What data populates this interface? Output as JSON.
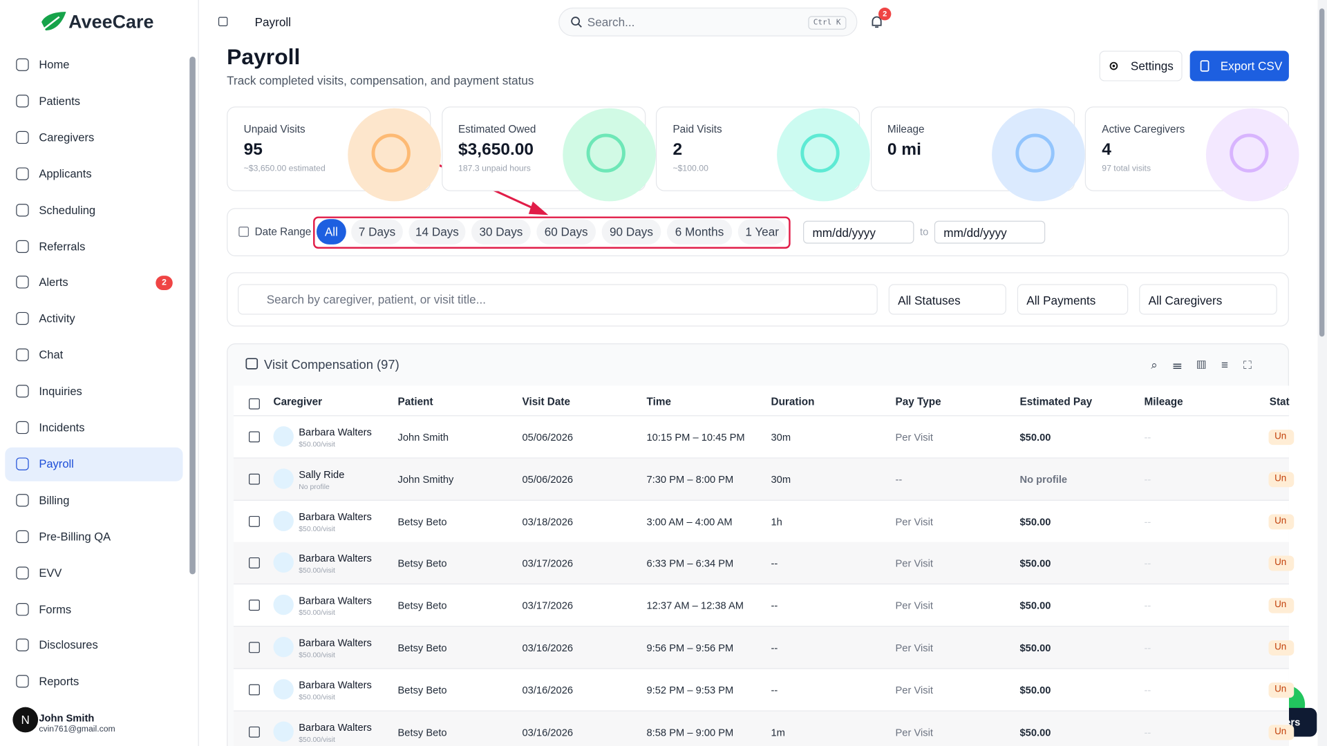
{
  "header": {
    "brand": "AveeCare",
    "breadcrumb": "Payroll",
    "search_placeholder": "Search...",
    "shortcut": "Ctrl K",
    "notification_count": "2"
  },
  "sidebar": {
    "items": [
      "Home",
      "Patients",
      "Caregivers",
      "Applicants",
      "Scheduling",
      "Referrals",
      "Alerts",
      "Activity",
      "Chat",
      "Inquiries",
      "Incidents",
      "Payroll",
      "Billing",
      "Pre-Billing QA",
      "EVV",
      "Forms",
      "Disclosures",
      "Reports"
    ],
    "alerts_badge": "2",
    "user": {
      "initial": "N",
      "name": "John Smith",
      "email": "cvin761@gmail.com"
    }
  },
  "page": {
    "title": "Payroll",
    "subtitle": "Track completed visits, compensation, and payment status",
    "settings_button": "Settings",
    "export_button": "Export CSV"
  },
  "stats": [
    {
      "label": "Unpaid Visits",
      "value": "95",
      "note": "~$3,650.00 estimated"
    },
    {
      "label": "Estimated Owed",
      "value": "$3,650.00",
      "note": "187.3 unpaid hours"
    },
    {
      "label": "Paid Visits",
      "value": "2",
      "note": "~$100.00"
    },
    {
      "label": "Mileage",
      "value": "0 mi",
      "note": ""
    },
    {
      "label": "Active Caregivers",
      "value": "4",
      "note": "97 total visits"
    }
  ],
  "date_range": {
    "label": "Date Range",
    "options": [
      "All",
      "7 Days",
      "14 Days",
      "30 Days",
      "60 Days",
      "90 Days",
      "6 Months",
      "1 Year"
    ],
    "from_placeholder": "mm/dd/yyyy",
    "to_label": "to",
    "to_placeholder": "mm/dd/yyyy"
  },
  "filters": {
    "search_placeholder": "Search by caregiver, patient, or visit title...",
    "selects": [
      "All Statuses",
      "All Payments",
      "All Caregivers"
    ]
  },
  "table": {
    "title": "Visit Compensation (97)",
    "columns": [
      "Caregiver",
      "Patient",
      "Visit Date",
      "Time",
      "Duration",
      "Pay Type",
      "Estimated Pay",
      "Mileage",
      "Stat"
    ],
    "rows": [
      [
        "Barbara Walters",
        "$50.00/visit",
        "John Smith",
        "05/06/2026",
        "10:15 PM – 10:45 PM",
        "30m",
        "Per Visit",
        "$50.00",
        "--",
        "Un"
      ],
      [
        "Sally Ride",
        "No profile",
        "John Smithy",
        "05/06/2026",
        "7:30 PM – 8:00 PM",
        "30m",
        "--",
        "No profile",
        "--",
        "Un"
      ],
      [
        "Barbara Walters",
        "$50.00/visit",
        "Betsy Beto",
        "03/18/2026",
        "3:00 AM – 4:00 AM",
        "1h",
        "Per Visit",
        "$50.00",
        "--",
        "Un"
      ],
      [
        "Barbara Walters",
        "$50.00/visit",
        "Betsy Beto",
        "03/17/2026",
        "6:33 PM – 6:34 PM",
        "--",
        "Per Visit",
        "$50.00",
        "--",
        "Un"
      ],
      [
        "Barbara Walters",
        "$50.00/visit",
        "Betsy Beto",
        "03/17/2026",
        "12:37 AM – 12:38 AM",
        "--",
        "Per Visit",
        "$50.00",
        "--",
        "Un"
      ],
      [
        "Barbara Walters",
        "$50.00/visit",
        "Betsy Beto",
        "03/16/2026",
        "9:56 PM – 9:56 PM",
        "--",
        "Per Visit",
        "$50.00",
        "--",
        "Un"
      ],
      [
        "Barbara Walters",
        "$50.00/visit",
        "Betsy Beto",
        "03/16/2026",
        "9:52 PM – 9:53 PM",
        "--",
        "Per Visit",
        "$50.00",
        "--",
        "Un"
      ],
      [
        "Barbara Walters",
        "$50.00/visit",
        "Betsy Beto",
        "03/16/2026",
        "8:58 PM – 9:00 PM",
        "1m",
        "Per Visit",
        "$50.00",
        "--",
        "Un"
      ]
    ]
  },
  "dev_button": "Dev users"
}
